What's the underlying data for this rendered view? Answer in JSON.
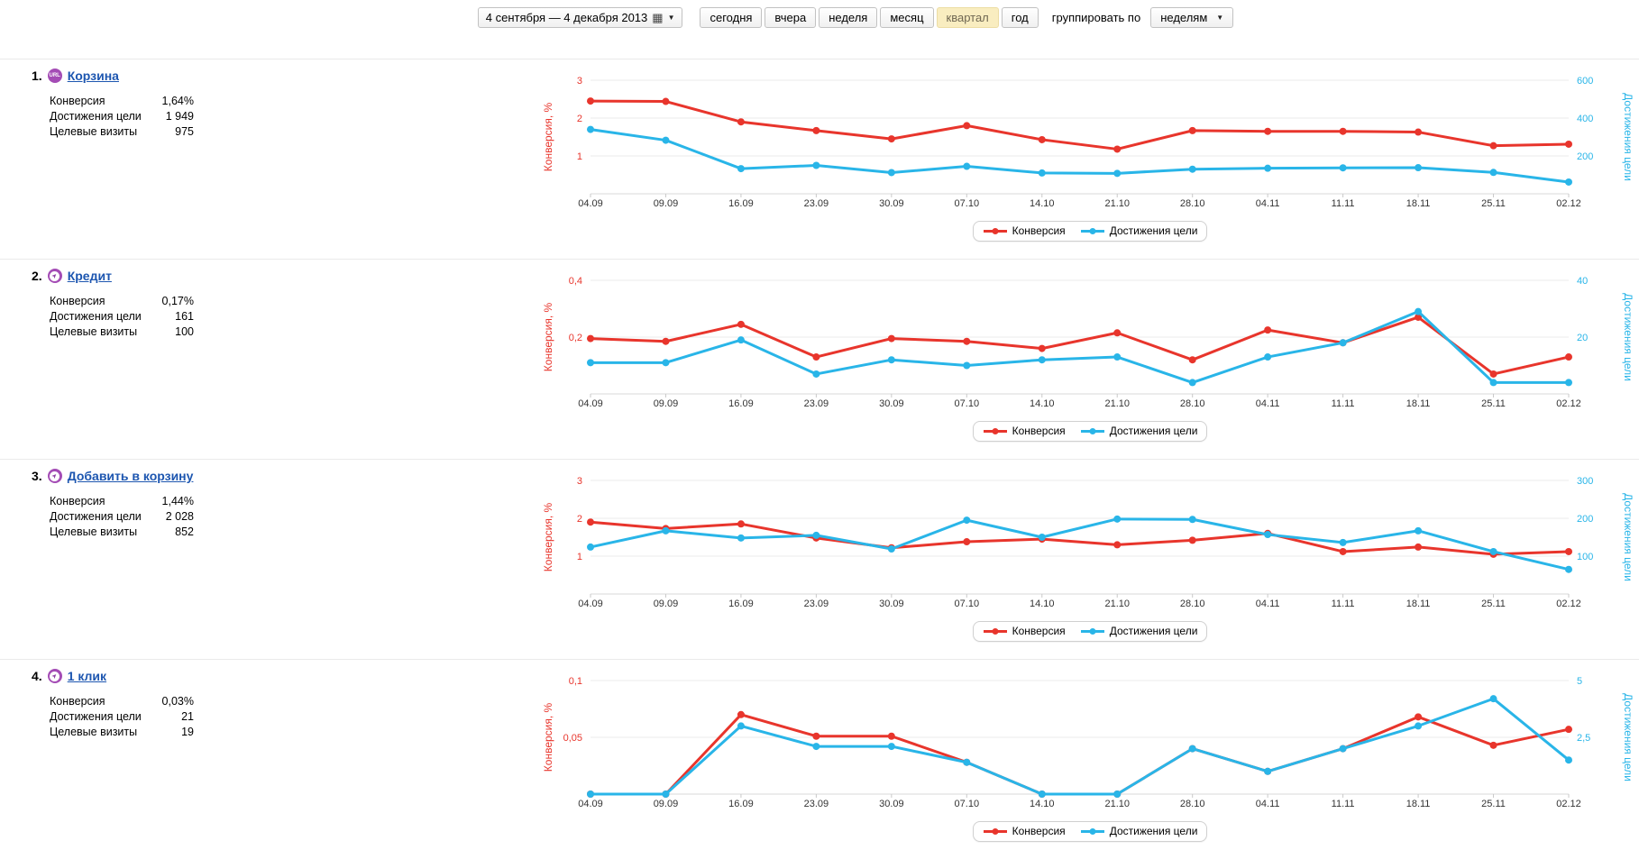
{
  "toolbar": {
    "date_range": "4 сентября — 4 декабря 2013",
    "presets": [
      "сегодня",
      "вчера",
      "неделя",
      "месяц",
      "квартал",
      "год"
    ],
    "selected_preset": "квартал",
    "group_by_label": "группировать по",
    "group_by_value": "неделям"
  },
  "legend": {
    "conversion": "Конверсия",
    "goals": "Достижения цели"
  },
  "colors": {
    "conversion": "#e8352c",
    "goals": "#29b5e8",
    "grid": "#ebebeb",
    "axis_line": "#d9d9d9",
    "tick": "#c9c9c9",
    "x_label": "#333333",
    "link": "#1d56b0",
    "goal_icon": "#a44cb5",
    "selected_preset_bg": "#f9edc0"
  },
  "sections": [
    {
      "num": "1.",
      "title": "Корзина",
      "icon": "url",
      "icon_text": "URL",
      "stats": [
        {
          "label": "Конверсия",
          "value": "1,64%"
        },
        {
          "label": "Достижения цели",
          "value": "1 949"
        },
        {
          "label": "Целевые визиты",
          "value": "975"
        }
      ]
    },
    {
      "num": "2.",
      "title": "Кредит",
      "icon": "click",
      "icon_text": "",
      "stats": [
        {
          "label": "Конверсия",
          "value": "0,17%"
        },
        {
          "label": "Достижения цели",
          "value": "161"
        },
        {
          "label": "Целевые визиты",
          "value": "100"
        }
      ]
    },
    {
      "num": "3.",
      "title": "Добавить в корзину",
      "icon": "click",
      "icon_text": "",
      "stats": [
        {
          "label": "Конверсия",
          "value": "1,44%"
        },
        {
          "label": "Достижения цели",
          "value": "2 028"
        },
        {
          "label": "Целевые визиты",
          "value": "852"
        }
      ]
    },
    {
      "num": "4.",
      "title": "1 клик",
      "icon": "click",
      "icon_text": "",
      "stats": [
        {
          "label": "Конверсия",
          "value": "0,03%"
        },
        {
          "label": "Достижения цели",
          "value": "21"
        },
        {
          "label": "Целевые визиты",
          "value": "19"
        }
      ]
    }
  ],
  "chart_data": [
    {
      "type": "line",
      "title": "Корзина",
      "categories": [
        "04.09",
        "09.09",
        "16.09",
        "23.09",
        "30.09",
        "07.10",
        "14.10",
        "21.10",
        "28.10",
        "04.11",
        "11.11",
        "18.11",
        "25.11",
        "02.12"
      ],
      "left_axis": {
        "label": "Конверсия, %",
        "max": 3,
        "ticks": [
          {
            "value": 1,
            "label": "1"
          },
          {
            "value": 2,
            "label": "2"
          },
          {
            "value": 3,
            "label": "3"
          }
        ]
      },
      "right_axis": {
        "label": "Достижения цели",
        "max": 600,
        "ticks": [
          {
            "value": 200,
            "label": "200"
          },
          {
            "value": 400,
            "label": "400"
          },
          {
            "value": 600,
            "label": "600"
          }
        ]
      },
      "series": [
        {
          "name": "Конверсия",
          "axis": "left",
          "color": "#e8352c",
          "values": [
            2.45,
            2.44,
            1.9,
            1.67,
            1.45,
            1.8,
            1.43,
            1.18,
            1.67,
            1.65,
            1.65,
            1.63,
            1.27,
            1.31
          ]
        },
        {
          "name": "Достижения цели",
          "axis": "right",
          "color": "#29b5e8",
          "values": [
            340,
            283,
            133,
            150,
            112,
            145,
            110,
            108,
            130,
            135,
            137,
            138,
            113,
            62
          ]
        }
      ]
    },
    {
      "type": "line",
      "title": "Кредит",
      "categories": [
        "04.09",
        "09.09",
        "16.09",
        "23.09",
        "30.09",
        "07.10",
        "14.10",
        "21.10",
        "28.10",
        "04.11",
        "11.11",
        "18.11",
        "25.11",
        "02.12"
      ],
      "left_axis": {
        "label": "Конверсия, %",
        "max": 0.4,
        "ticks": [
          {
            "value": 0.2,
            "label": "0,2"
          },
          {
            "value": 0.4,
            "label": "0,4"
          }
        ]
      },
      "right_axis": {
        "label": "Достижения цели",
        "max": 40,
        "ticks": [
          {
            "value": 20,
            "label": "20"
          },
          {
            "value": 40,
            "label": "40"
          }
        ]
      },
      "series": [
        {
          "name": "Конверсия",
          "axis": "left",
          "color": "#e8352c",
          "values": [
            0.195,
            0.185,
            0.245,
            0.13,
            0.195,
            0.185,
            0.16,
            0.215,
            0.12,
            0.225,
            0.18,
            0.27,
            0.07,
            0.13
          ]
        },
        {
          "name": "Достижения цели",
          "axis": "right",
          "color": "#29b5e8",
          "values": [
            11,
            11,
            19,
            7,
            12,
            10,
            12,
            13,
            4,
            13,
            18,
            29,
            4,
            4
          ]
        }
      ]
    },
    {
      "type": "line",
      "title": "Добавить в корзину",
      "categories": [
        "04.09",
        "09.09",
        "16.09",
        "23.09",
        "30.09",
        "07.10",
        "14.10",
        "21.10",
        "28.10",
        "04.11",
        "11.11",
        "18.11",
        "25.11",
        "02.12"
      ],
      "left_axis": {
        "label": "Конверсия, %",
        "max": 3,
        "ticks": [
          {
            "value": 1,
            "label": "1"
          },
          {
            "value": 2,
            "label": "2"
          },
          {
            "value": 3,
            "label": "3"
          }
        ]
      },
      "right_axis": {
        "label": "Достижения цели",
        "max": 300,
        "ticks": [
          {
            "value": 100,
            "label": "100"
          },
          {
            "value": 200,
            "label": "200"
          },
          {
            "value": 300,
            "label": "300"
          }
        ]
      },
      "series": [
        {
          "name": "Конверсия",
          "axis": "left",
          "color": "#e8352c",
          "values": [
            1.9,
            1.73,
            1.85,
            1.48,
            1.22,
            1.38,
            1.45,
            1.3,
            1.42,
            1.6,
            1.12,
            1.24,
            1.05,
            1.12
          ]
        },
        {
          "name": "Достижения цели",
          "axis": "right",
          "color": "#29b5e8",
          "values": [
            124,
            167,
            148,
            155,
            119,
            195,
            150,
            198,
            197,
            157,
            136,
            167,
            112,
            65
          ]
        }
      ]
    },
    {
      "type": "line",
      "title": "1 клик",
      "categories": [
        "04.09",
        "09.09",
        "16.09",
        "23.09",
        "30.09",
        "07.10",
        "14.10",
        "21.10",
        "28.10",
        "04.11",
        "11.11",
        "18.11",
        "25.11",
        "02.12"
      ],
      "left_axis": {
        "label": "Конверсия, %",
        "max": 0.1,
        "ticks": [
          {
            "value": 0.05,
            "label": "0,05"
          },
          {
            "value": 0.1,
            "label": "0,1"
          }
        ]
      },
      "right_axis": {
        "label": "Достижения цели",
        "max": 5,
        "ticks": [
          {
            "value": 2.5,
            "label": "2,5"
          },
          {
            "value": 5,
            "label": "5"
          }
        ]
      },
      "series": [
        {
          "name": "Конверсия",
          "axis": "left",
          "color": "#e8352c",
          "values": [
            0,
            0,
            0.07,
            0.051,
            0.051,
            0.028,
            0,
            0,
            0.04,
            0.02,
            0.04,
            0.068,
            0.043,
            0.057
          ]
        },
        {
          "name": "Достижения цели",
          "axis": "right",
          "color": "#29b5e8",
          "values": [
            0,
            0,
            3,
            2.1,
            2.1,
            1.4,
            0,
            0,
            2,
            1,
            2,
            3,
            4.2,
            1.5
          ]
        }
      ]
    }
  ]
}
